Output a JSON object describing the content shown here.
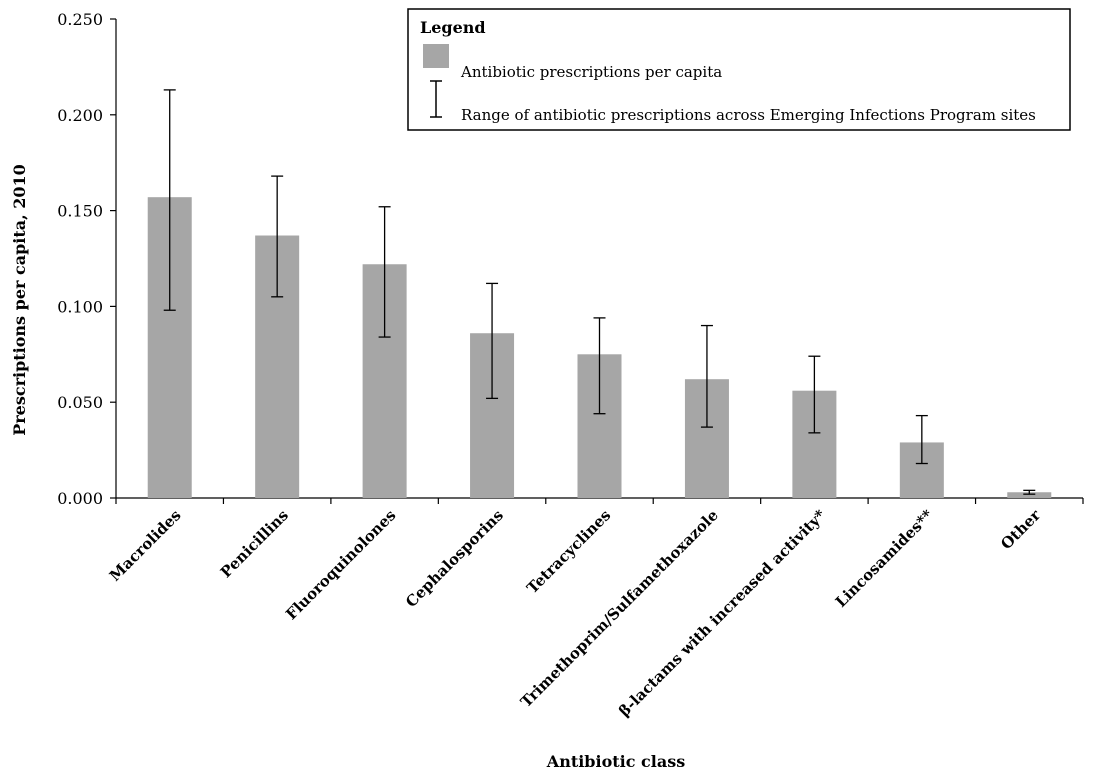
{
  "chart_data": {
    "type": "bar",
    "title": "",
    "xlabel": "Antibiotic class",
    "ylabel": "Prescriptions per capita, 2010",
    "ylim": [
      0,
      0.25
    ],
    "yticks": [
      "0.000",
      "0.050",
      "0.100",
      "0.150",
      "0.200",
      "0.250"
    ],
    "categories": [
      "Macrolides",
      "Penicillins",
      "Fluoroquinolones",
      "Cephalosporins",
      "Tetracyclines",
      "Trimethoprim/Sulfamethoxazole",
      "β-lactams with increased activity*",
      "Lincosamides**",
      "Other"
    ],
    "values": [
      0.157,
      0.137,
      0.122,
      0.086,
      0.075,
      0.062,
      0.056,
      0.029,
      0.003
    ],
    "error_low": [
      0.098,
      0.105,
      0.084,
      0.052,
      0.044,
      0.037,
      0.034,
      0.018,
      0.002
    ],
    "error_high": [
      0.213,
      0.168,
      0.152,
      0.112,
      0.094,
      0.09,
      0.074,
      0.043,
      0.004
    ],
    "grid": false,
    "bar_color": "#a6a6a6",
    "legend": {
      "title": "Legend",
      "position": "top-right",
      "entries": [
        {
          "label": "Antibiotic prescriptions per capita",
          "kind": "bar"
        },
        {
          "label": "Range of antibiotic prescriptions across Emerging Infections Program sites",
          "kind": "errorbar"
        }
      ]
    }
  }
}
